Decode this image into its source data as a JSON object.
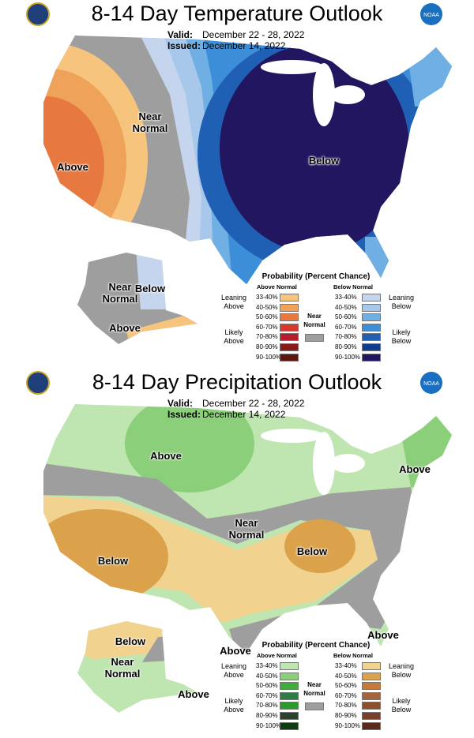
{
  "panels": [
    {
      "title": "8-14 Day Temperature Outlook",
      "logo_text": "NOAA",
      "valid_label": "Valid:",
      "valid": "December 22 - 28, 2022",
      "issued_label": "Issued:",
      "issued": "December 14, 2022",
      "region_labels": [
        "Near Normal",
        "Above",
        "Below",
        "Near Normal",
        "Below",
        "Above"
      ],
      "legend": {
        "title": "Probability (Percent Chance)",
        "above": {
          "header": "Above Normal",
          "groups": [
            {
              "label": "Leaning Above",
              "items": [
                {
                  "range": "33-40%",
                  "color": "#f6c47c"
                },
                {
                  "range": "40-50%",
                  "color": "#eea25a"
                }
              ]
            },
            {
              "label": "Likely Above",
              "items": [
                {
                  "range": "50-60%",
                  "color": "#e7783f"
                },
                {
                  "range": "60-70%",
                  "color": "#d73a2c"
                },
                {
                  "range": "70-80%",
                  "color": "#b81d2d"
                },
                {
                  "range": "80-90%",
                  "color": "#8b1a1a"
                },
                {
                  "range": "90-100%",
                  "color": "#5c1810"
                }
              ]
            }
          ]
        },
        "near": {
          "label": "Near Normal",
          "color": "#9e9e9e"
        },
        "below": {
          "header": "Below Normal",
          "groups": [
            {
              "label": "Leaning Below",
              "items": [
                {
                  "range": "33-40%",
                  "color": "#c6d5ee"
                },
                {
                  "range": "40-50%",
                  "color": "#a8c8eb"
                }
              ]
            },
            {
              "label": "Likely Below",
              "items": [
                {
                  "range": "50-60%",
                  "color": "#6fafe3"
                },
                {
                  "range": "60-70%",
                  "color": "#3d8ed8"
                },
                {
                  "range": "70-80%",
                  "color": "#1f5fb4"
                },
                {
                  "range": "80-90%",
                  "color": "#0d3c93"
                },
                {
                  "range": "90-100%",
                  "color": "#221660"
                }
              ]
            }
          ]
        }
      }
    },
    {
      "title": "8-14 Day Precipitation Outlook",
      "logo_text": "NOAA",
      "valid_label": "Valid:",
      "valid": "December 22 - 28, 2022",
      "issued_label": "Issued:",
      "issued": "December 14, 2022",
      "region_labels": [
        "Above",
        "Near Normal",
        "Below",
        "Below",
        "Above",
        "Above",
        "Above",
        "Below",
        "Near Normal",
        "Above"
      ],
      "legend": {
        "title": "Probability (Percent Chance)",
        "above": {
          "header": "Above Normal",
          "groups": [
            {
              "label": "Leaning Above",
              "items": [
                {
                  "range": "33-40%",
                  "color": "#bfe5b0"
                },
                {
                  "range": "40-50%",
                  "color": "#8ccf7a"
                }
              ]
            },
            {
              "label": "Likely Above",
              "items": [
                {
                  "range": "50-60%",
                  "color": "#41ab3c"
                },
                {
                  "range": "60-70%",
                  "color": "#2e7d46"
                },
                {
                  "range": "70-80%",
                  "color": "#2a9a2a"
                },
                {
                  "range": "80-90%",
                  "color": "#2d3f2d"
                },
                {
                  "range": "90-100%",
                  "color": "#0f3b10"
                }
              ]
            }
          ]
        },
        "near": {
          "label": "Near Normal",
          "color": "#9e9e9e"
        },
        "below": {
          "header": "Below Normal",
          "groups": [
            {
              "label": "Leaning Below",
              "items": [
                {
                  "range": "33-40%",
                  "color": "#f2d28f"
                },
                {
                  "range": "40-50%",
                  "color": "#dca24b"
                }
              ]
            },
            {
              "label": "Likely Below",
              "items": [
                {
                  "range": "50-60%",
                  "color": "#c57a3c"
                },
                {
                  "range": "60-70%",
                  "color": "#a7643a"
                },
                {
                  "range": "70-80%",
                  "color": "#8c4f2c"
                },
                {
                  "range": "80-90%",
                  "color": "#77402a"
                },
                {
                  "range": "90-100%",
                  "color": "#5a2a1a"
                }
              ]
            }
          ]
        }
      }
    }
  ]
}
